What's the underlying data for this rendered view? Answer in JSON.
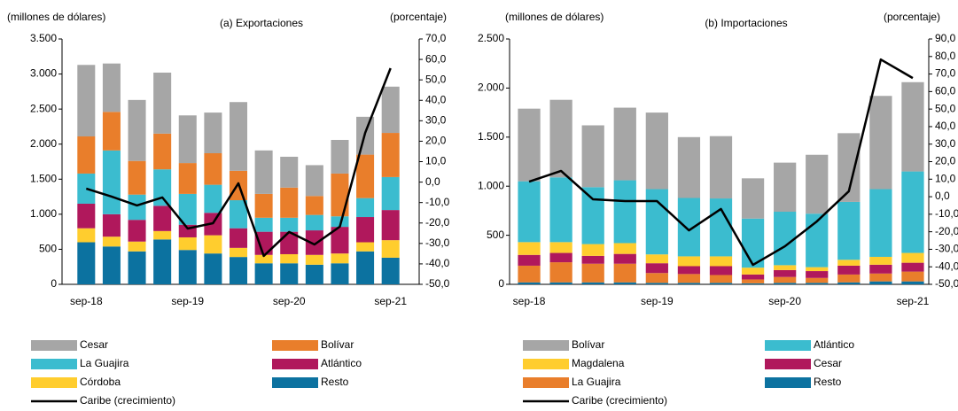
{
  "chart_data": [
    {
      "type": "bar",
      "stacked": true,
      "title": "(a) Exportaciones",
      "y_label": "(millones de dólares)",
      "y2_label": "(porcentaje)",
      "categories": [
        "sep-18",
        null,
        null,
        null,
        "sep-19",
        null,
        null,
        null,
        "sep-20",
        null,
        null,
        null,
        "sep-21"
      ],
      "series": [
        {
          "name": "Cesar",
          "color": "#a6a6a6",
          "values": [
            1020,
            690,
            870,
            870,
            680,
            580,
            980,
            620,
            440,
            440,
            480,
            540,
            660
          ]
        },
        {
          "name": "Bolívar",
          "color": "#e97e2b",
          "values": [
            530,
            550,
            480,
            510,
            440,
            450,
            420,
            340,
            430,
            270,
            610,
            620,
            630
          ]
        },
        {
          "name": "La Guajira",
          "color": "#3bbccf",
          "values": [
            430,
            910,
            360,
            520,
            440,
            400,
            400,
            200,
            200,
            220,
            150,
            270,
            470
          ]
        },
        {
          "name": "Atlántico",
          "color": "#b0185c",
          "values": [
            350,
            320,
            310,
            360,
            180,
            320,
            280,
            330,
            320,
            350,
            380,
            360,
            430
          ]
        },
        {
          "name": "Córdoba",
          "color": "#ffcd2e",
          "values": [
            200,
            140,
            140,
            120,
            180,
            260,
            130,
            120,
            130,
            140,
            140,
            130,
            250
          ]
        },
        {
          "name": "Resto",
          "color": "#0c72a0",
          "values": [
            600,
            540,
            470,
            640,
            490,
            440,
            390,
            300,
            300,
            280,
            300,
            470,
            380
          ]
        },
        {
          "name": "Caribe (crecimiento)",
          "type": "line",
          "axis": "y2",
          "color": "#000000",
          "values": [
            -3.2,
            -7.1,
            -11.4,
            -7.5,
            -22.7,
            -20.1,
            -0.6,
            -36.1,
            -24.4,
            -30.5,
            -21.8,
            24.1,
            55.7
          ]
        }
      ],
      "ylim": [
        0,
        3500
      ],
      "yticks": [
        0,
        500,
        {
          "value": 1000,
          "label": "1.000"
        },
        {
          "value": 1500,
          "label": "1.500"
        },
        {
          "value": 2000,
          "label": "2.000"
        },
        {
          "value": 2500,
          "label": "2.500"
        },
        {
          "value": 3000,
          "label": "3.000"
        },
        {
          "value": 3500,
          "label": "3.500"
        }
      ],
      "y2lim": [
        -50,
        70
      ],
      "y2ticks": [
        {
          "value": -50,
          "label": "-50,0"
        },
        {
          "value": -40,
          "label": "-40,0"
        },
        {
          "value": -30,
          "label": "-30,0"
        },
        {
          "value": -20,
          "label": "-20,0"
        },
        {
          "value": -10,
          "label": "-10,0"
        },
        {
          "value": 0,
          "label": "0,0"
        },
        {
          "value": 10,
          "label": "10,0"
        },
        {
          "value": 20,
          "label": "20,0"
        },
        {
          "value": 30,
          "label": "30,0"
        },
        {
          "value": 40,
          "label": "40,0"
        },
        {
          "value": 50,
          "label": "50,0"
        },
        {
          "value": 60,
          "label": "60,0"
        },
        {
          "value": 70,
          "label": "70,0"
        }
      ],
      "grid": false
    },
    {
      "type": "bar",
      "stacked": true,
      "title": "(b) Importaciones",
      "y_label": "(millones de dólares)",
      "y2_label": "(porcentaje)",
      "categories": [
        "sep-18",
        null,
        null,
        null,
        "sep-19",
        null,
        null,
        null,
        "sep-20",
        null,
        null,
        null,
        "sep-21"
      ],
      "series": [
        {
          "name": "Bolívar",
          "color": "#a6a6a6",
          "values": [
            740,
            790,
            630,
            740,
            780,
            620,
            635,
            410,
            500,
            600,
            700,
            950,
            910
          ]
        },
        {
          "name": "Atlántico",
          "color": "#3bbccf",
          "values": [
            620,
            660,
            580,
            640,
            665,
            595,
            590,
            500,
            545,
            545,
            590,
            690,
            830
          ]
        },
        {
          "name": "Magdalena",
          "color": "#ffcd2e",
          "values": [
            130,
            110,
            120,
            110,
            90,
            100,
            100,
            70,
            50,
            40,
            60,
            80,
            100
          ]
        },
        {
          "name": "Cesar",
          "color": "#b0185c",
          "values": [
            110,
            95,
            80,
            100,
            100,
            80,
            90,
            50,
            70,
            70,
            90,
            90,
            90
          ]
        },
        {
          "name": "La Guajira",
          "color": "#e97e2b",
          "values": [
            170,
            205,
            190,
            190,
            100,
            90,
            80,
            40,
            60,
            50,
            80,
            80,
            100
          ]
        },
        {
          "name": "Resto",
          "color": "#0c72a0",
          "values": [
            20,
            20,
            20,
            20,
            15,
            15,
            15,
            10,
            15,
            15,
            20,
            30,
            30
          ]
        },
        {
          "name": "Caribe (crecimiento)",
          "type": "line",
          "axis": "y2",
          "color": "#000000",
          "values": [
            8.6,
            14.7,
            -1.5,
            -2.5,
            -2.5,
            -19.2,
            -7.0,
            -38.9,
            -28.3,
            -14.1,
            3.1,
            78.3,
            67.7
          ]
        }
      ],
      "ylim": [
        0,
        2500
      ],
      "yticks": [
        0,
        500,
        {
          "value": 1000,
          "label": "1.000"
        },
        {
          "value": 1500,
          "label": "1.500"
        },
        {
          "value": 2000,
          "label": "2.000"
        },
        {
          "value": 2500,
          "label": "2.500"
        }
      ],
      "y2lim": [
        -50,
        90
      ],
      "y2ticks": [
        {
          "value": -50,
          "label": "-50,0"
        },
        {
          "value": -40,
          "label": "-40,0"
        },
        {
          "value": -30,
          "label": "-30,0"
        },
        {
          "value": -20,
          "label": "-20,0"
        },
        {
          "value": -10,
          "label": "-10,0"
        },
        {
          "value": 0,
          "label": "0,0"
        },
        {
          "value": 10,
          "label": "10,0"
        },
        {
          "value": 20,
          "label": "20,0"
        },
        {
          "value": 30,
          "label": "30,0"
        },
        {
          "value": 40,
          "label": "40,0"
        },
        {
          "value": 50,
          "label": "50,0"
        },
        {
          "value": 60,
          "label": "60,0"
        },
        {
          "value": 70,
          "label": "70,0"
        },
        {
          "value": 80,
          "label": "80,0"
        },
        {
          "value": 90,
          "label": "90,0"
        }
      ],
      "grid": false
    }
  ]
}
